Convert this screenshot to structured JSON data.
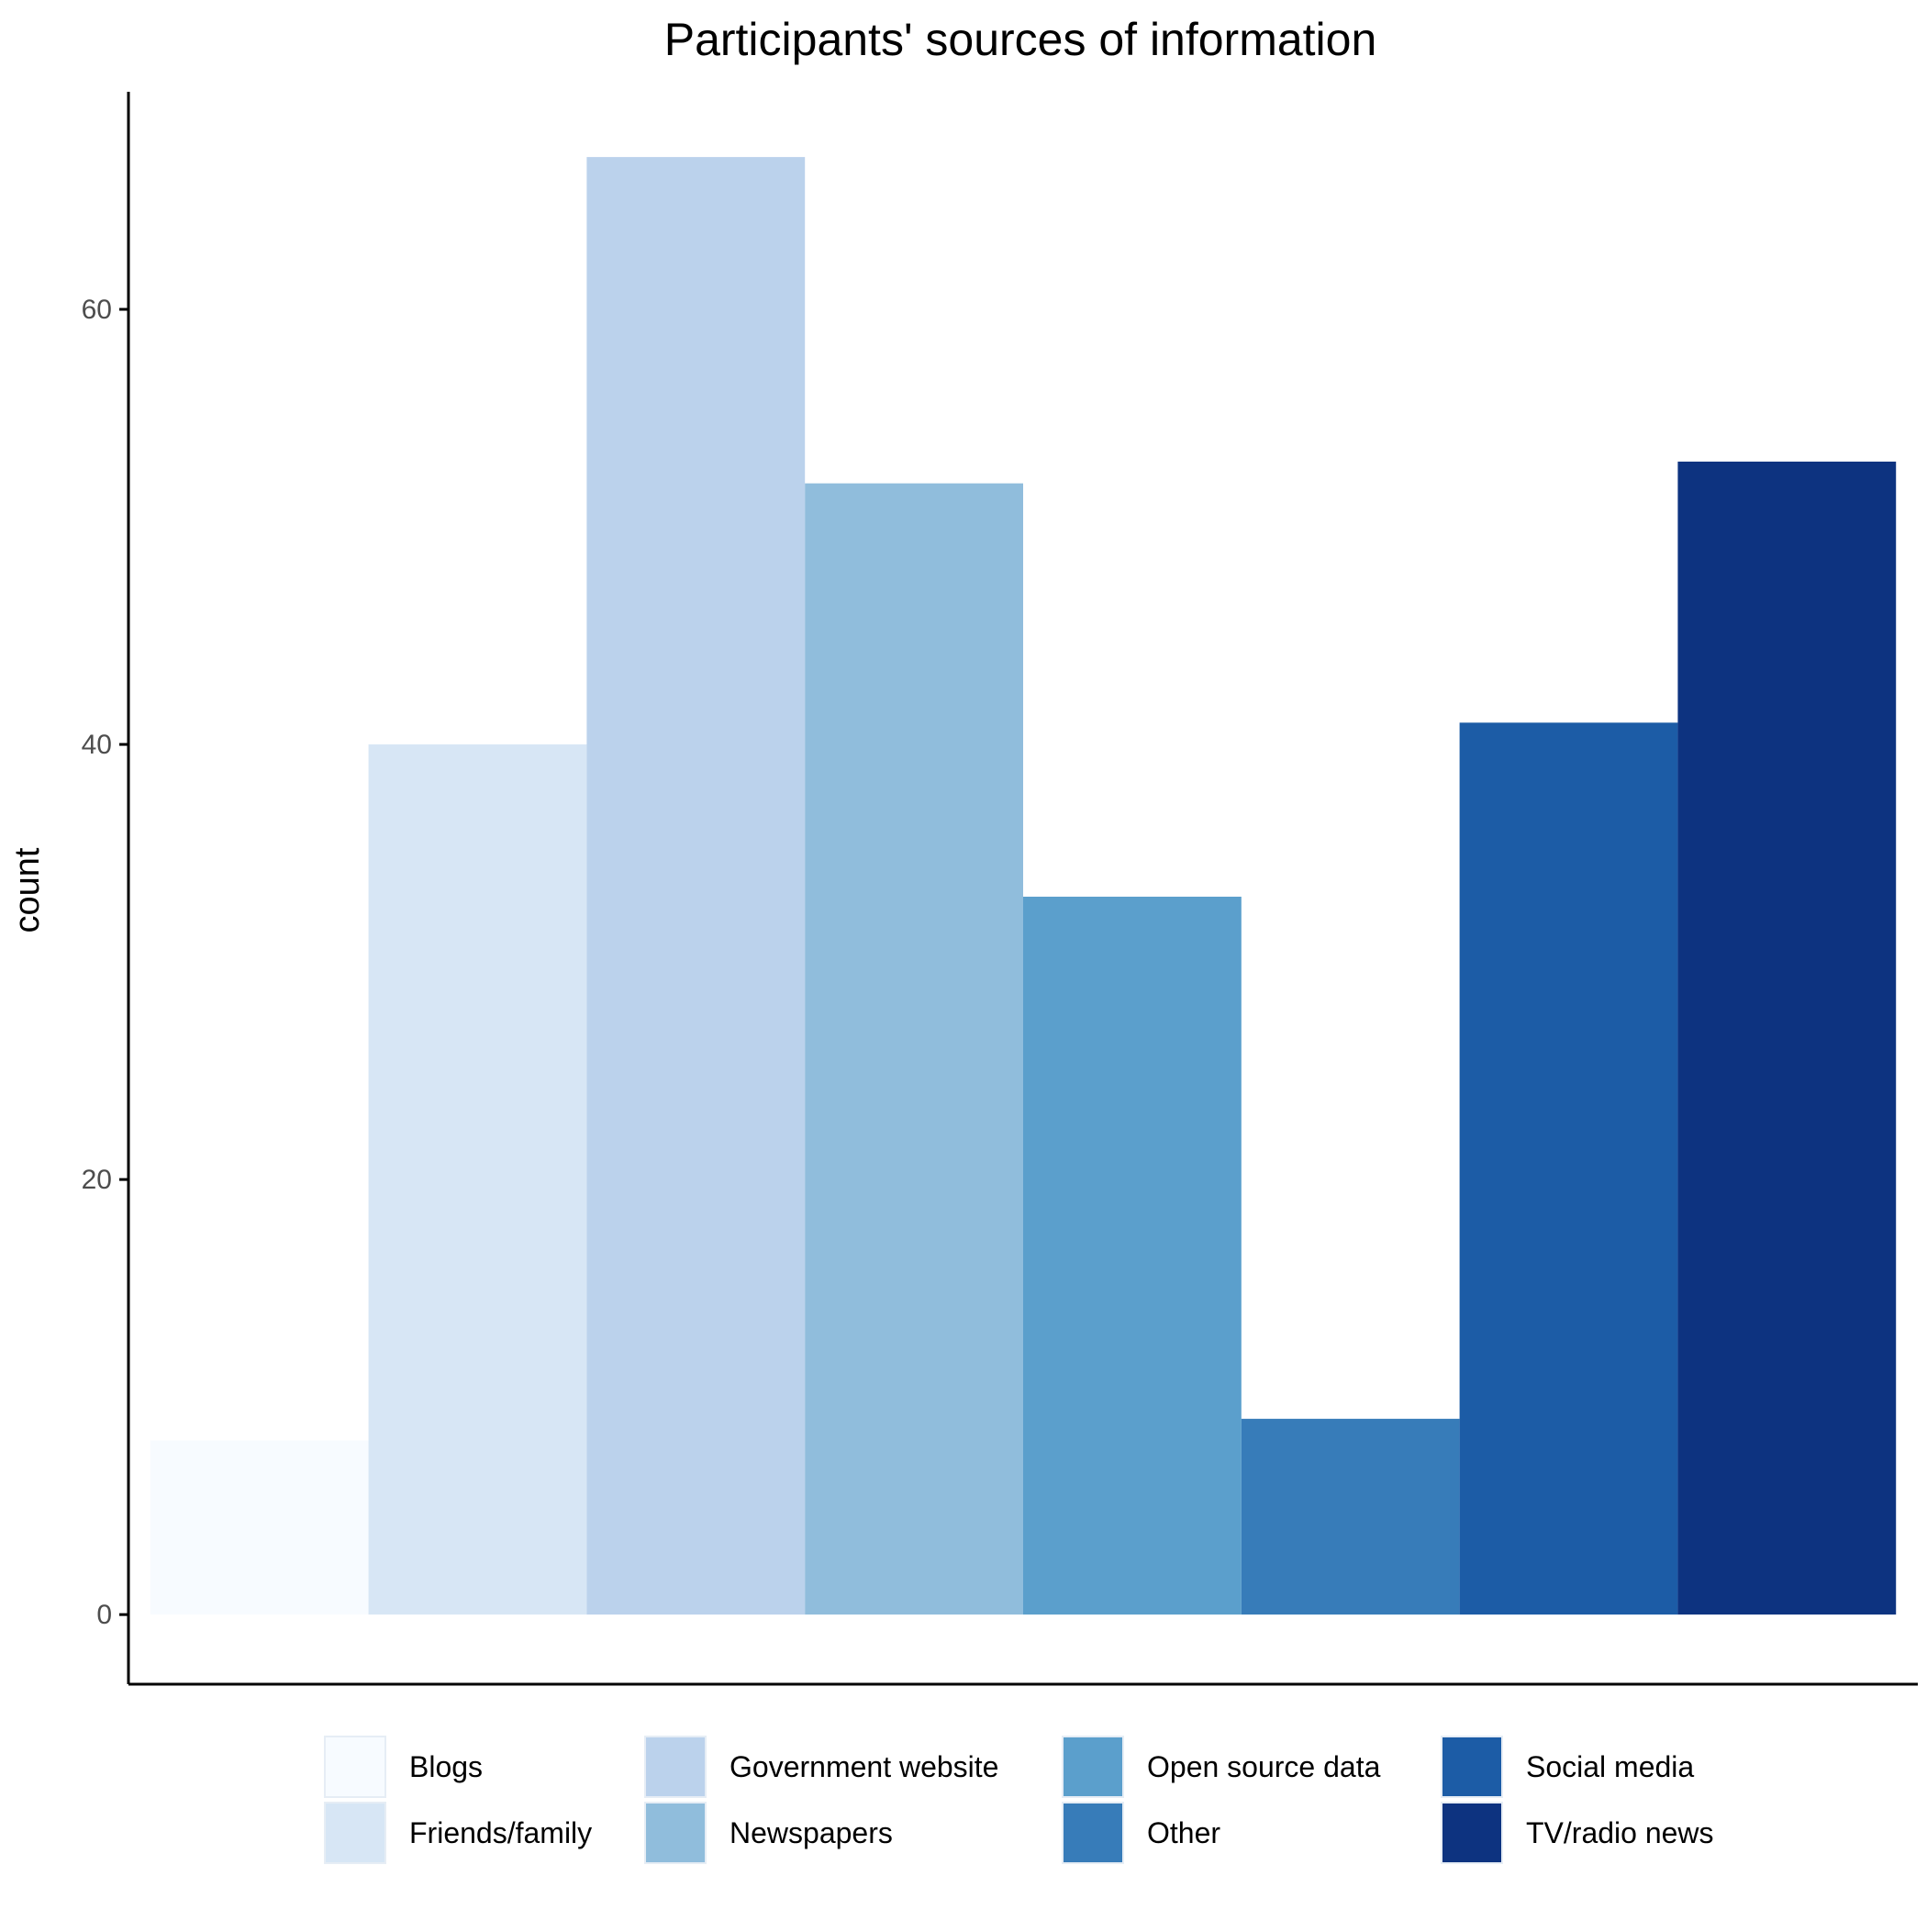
{
  "chart_data": {
    "type": "bar",
    "title": "Participants' sources of information",
    "xlabel": "",
    "ylabel": "count",
    "ylim": [
      -3.2,
      70
    ],
    "yticks": [
      0,
      20,
      40,
      60
    ],
    "grid": false,
    "legend_position": "bottom",
    "categories": [
      "Blogs",
      "Friends/family",
      "Government website",
      "Newspapers",
      "Open source data",
      "Other",
      "Social media",
      "TV/radio news"
    ],
    "values": [
      8,
      40,
      67,
      52,
      33,
      9,
      41,
      53
    ],
    "colors": [
      "#F7FBFF",
      "#D7E6F5",
      "#BBD2EC",
      "#90BDDC",
      "#5B9FCC",
      "#377CB9",
      "#1C5CA6",
      "#0D3380"
    ]
  }
}
